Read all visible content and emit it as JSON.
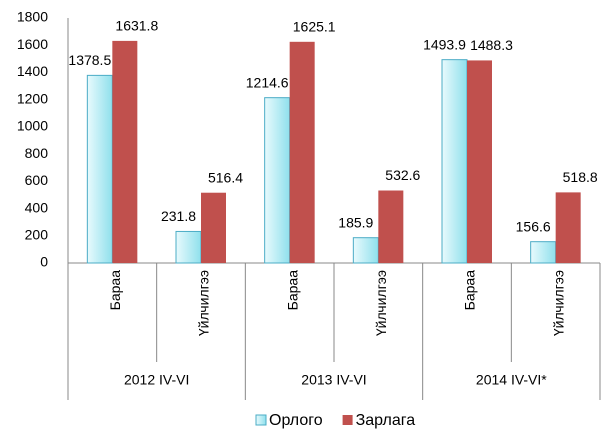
{
  "chart_data": {
    "type": "bar",
    "categories": [
      "Бараа",
      "Үйлчилгээ",
      "Бараа",
      "Үйлчилгээ",
      "Бараа",
      "Үйлчилгээ"
    ],
    "groups": [
      "2012 IV-VI",
      "2013 IV-VI",
      "2014 IV-VI*"
    ],
    "series": [
      {
        "name": "Орлого",
        "color": "#4bacc6",
        "values": [
          1378.5,
          231.8,
          1214.6,
          185.9,
          1493.9,
          156.6
        ]
      },
      {
        "name": "Зарлага",
        "color": "#c0504d",
        "values": [
          1631.8,
          516.4,
          1625.1,
          532.6,
          1488.3,
          518.8
        ]
      }
    ],
    "ylim": [
      0,
      1800
    ],
    "yticks": [
      0,
      200,
      400,
      600,
      800,
      1000,
      1200,
      1400,
      1600,
      1800
    ],
    "grid": false,
    "legend": "bottom"
  }
}
